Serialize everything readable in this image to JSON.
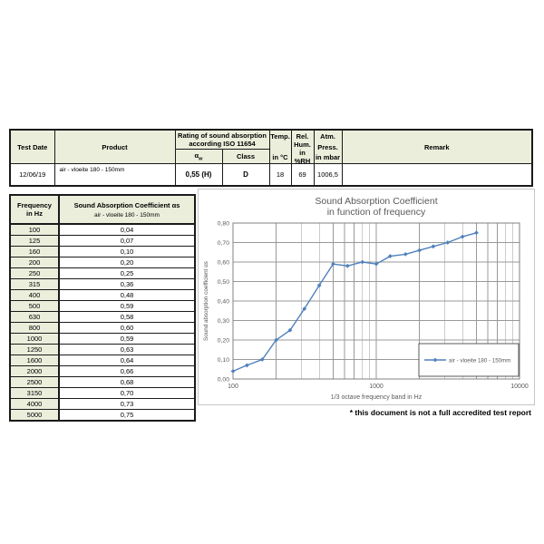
{
  "colors": {
    "table_header_bg": "#eaeedb",
    "table_border": "#1a1a1a",
    "chart_line": "#4f81bd",
    "grid": "#999999",
    "plot_border": "#808080",
    "axis_text": "#595959",
    "chart_title": "#595959",
    "legend_border": "#595959",
    "chart_box_border": "#c6c6c6"
  },
  "top_table": {
    "headers": {
      "test_date": "Test Date",
      "product": "Product",
      "rating_line1": "Rating of sound absorption",
      "rating_line2": "according ISO 11654",
      "alpha_symbol": "α",
      "alpha_subscript": "w",
      "class": "Class",
      "temp_line1": "Temp.",
      "temp_line2": "in °C",
      "hum_line1": "Rel.",
      "hum_line2": "Hum.",
      "hum_line3": "in %RH",
      "press_line1": "Atm.",
      "press_line2": "Press.",
      "press_line3": "in mbar",
      "remark": "Remark"
    },
    "row": {
      "test_date": "12/06/19",
      "product": "air - vloeite 180 - 150mm",
      "alpha_w": "0,55 (H)",
      "class": "D",
      "temp": "18",
      "hum": "69",
      "press": "1006,5",
      "remark": ""
    }
  },
  "freq_table": {
    "header_col1_line1": "Frequency",
    "header_col1_line2": "in Hz",
    "header_col2_title": "Sound Absorption Coefficient αs",
    "header_col2_subtitle": "air - vloeite 180 - 150mm",
    "rows": [
      [
        "100",
        "0,04"
      ],
      [
        "125",
        "0,07"
      ],
      [
        "160",
        "0,10"
      ],
      [
        "200",
        "0,20"
      ],
      [
        "250",
        "0,25"
      ],
      [
        "315",
        "0,36"
      ],
      [
        "400",
        "0,48"
      ],
      [
        "500",
        "0,59"
      ],
      [
        "630",
        "0,58"
      ],
      [
        "800",
        "0,60"
      ],
      [
        "1000",
        "0,59"
      ],
      [
        "1250",
        "0,63"
      ],
      [
        "1600",
        "0,64"
      ],
      [
        "2000",
        "0,66"
      ],
      [
        "2500",
        "0,68"
      ],
      [
        "3150",
        "0,70"
      ],
      [
        "4000",
        "0,73"
      ],
      [
        "5000",
        "0,75"
      ]
    ]
  },
  "chart_data": {
    "type": "line",
    "title_line1": "Sound Absorption Coefficient",
    "title_line2": "in function of frequency",
    "xlabel": "1/3 octave frequency band in Hz",
    "ylabel": "Sound absorption coefficient αs",
    "x_scale": "log",
    "xlim": [
      100,
      10000
    ],
    "xticks": [
      100,
      1000,
      10000
    ],
    "ylim": [
      0,
      0.8
    ],
    "ytick_step": 0.1,
    "grid": true,
    "legend_position": "bottom-right",
    "series": [
      {
        "name": "air - vloeite 180 - 150mm",
        "x": [
          100,
          125,
          160,
          200,
          250,
          315,
          400,
          500,
          630,
          800,
          1000,
          1250,
          1600,
          2000,
          2500,
          3150,
          4000,
          5000
        ],
        "values": [
          0.04,
          0.07,
          0.1,
          0.2,
          0.25,
          0.36,
          0.48,
          0.59,
          0.58,
          0.6,
          0.59,
          0.63,
          0.64,
          0.66,
          0.68,
          0.7,
          0.73,
          0.75
        ],
        "marker": "diamond"
      }
    ]
  },
  "footer_note": "* this document is not a full accredited test report"
}
